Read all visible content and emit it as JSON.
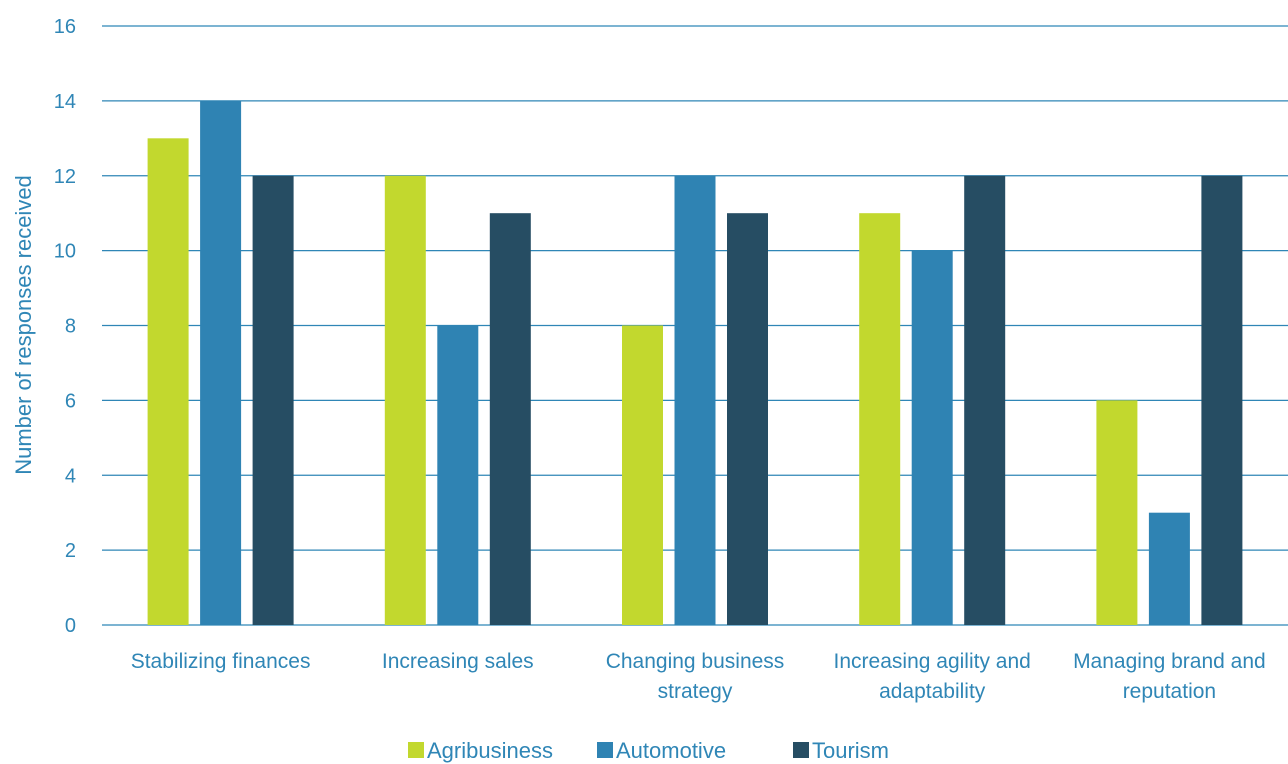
{
  "chart_data": {
    "type": "bar",
    "categories": [
      [
        "Stabilizing finances"
      ],
      [
        "Increasing sales"
      ],
      [
        "Changing business",
        "strategy"
      ],
      [
        "Increasing agility and",
        "adaptability"
      ],
      [
        "Managing brand and",
        "reputation"
      ]
    ],
    "series": [
      {
        "name": "Agribusiness",
        "color": "#c2d82e",
        "values": [
          13,
          12,
          8,
          11,
          6
        ]
      },
      {
        "name": "Automotive",
        "color": "#2f83b3",
        "values": [
          14,
          8,
          12,
          10,
          3
        ]
      },
      {
        "name": "Tourism",
        "color": "#264d63",
        "values": [
          12,
          11,
          11,
          12,
          12
        ]
      }
    ],
    "ylabel": "Number of responses received",
    "xlabel": "",
    "ylim": [
      0,
      16
    ],
    "yticks": [
      0,
      2,
      4,
      6,
      8,
      10,
      12,
      14,
      16
    ],
    "grid": true,
    "gridColor": "#2f86b6",
    "legend_position": "bottom"
  }
}
